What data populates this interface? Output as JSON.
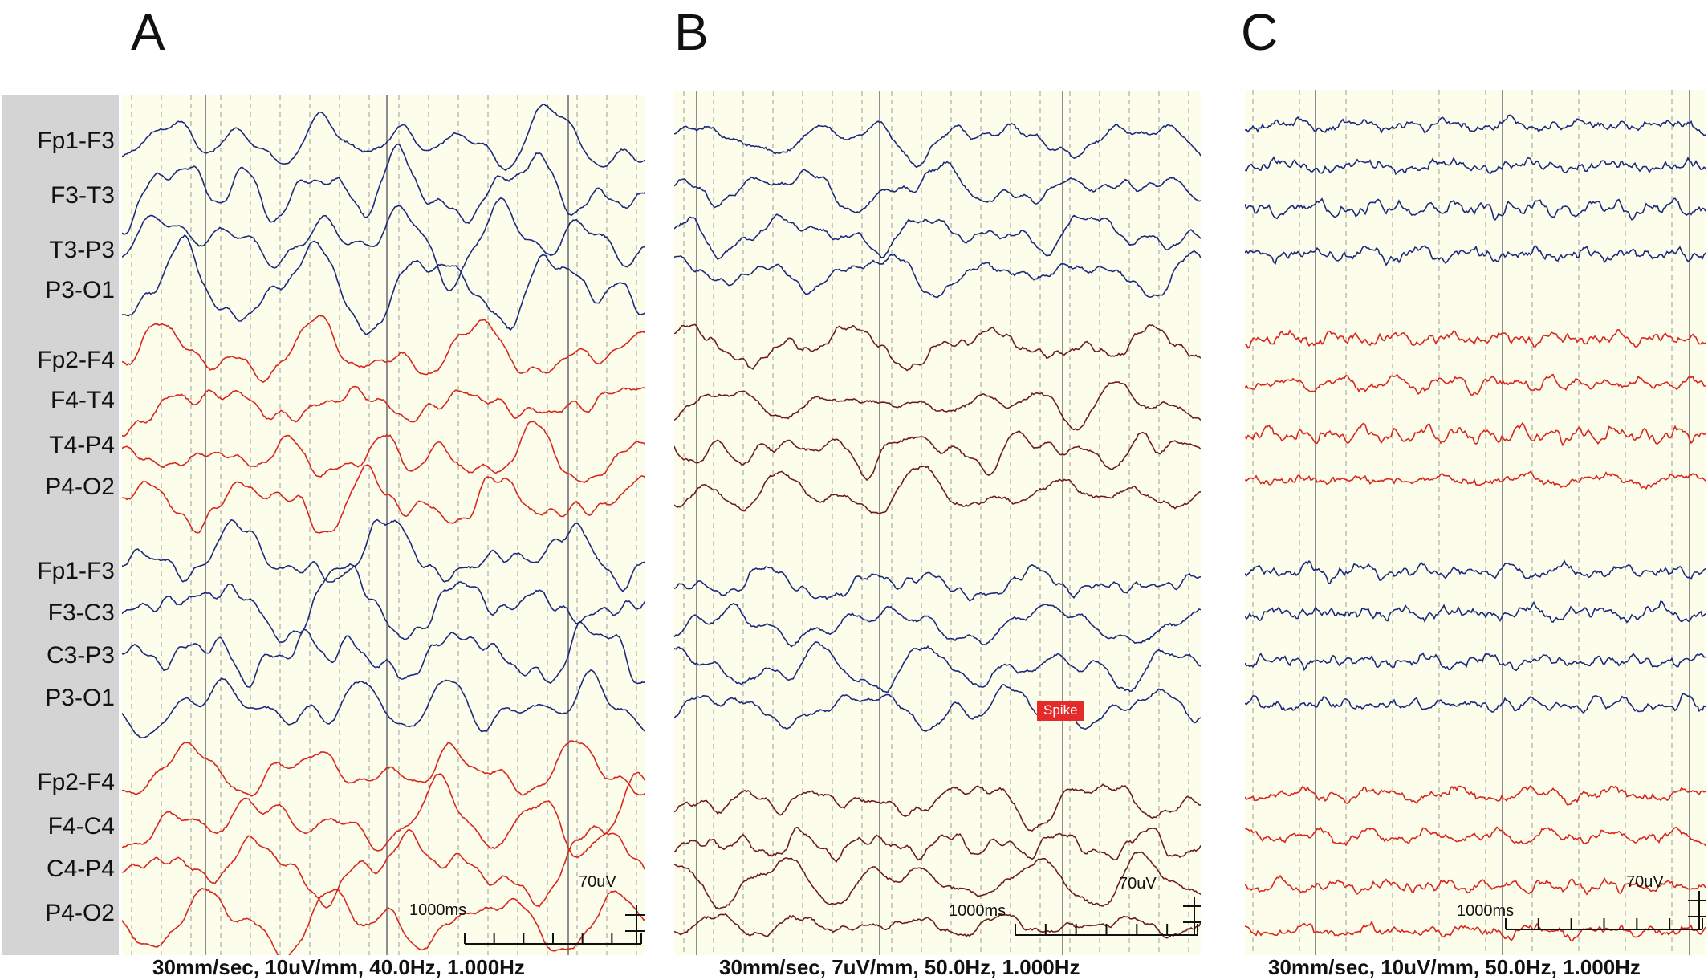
{
  "panels": [
    {
      "letter": "A",
      "settings": "30mm/sec, 10uV/mm, 40.0Hz, 1.000Hz",
      "scale": {
        "amplitude": "70uV",
        "time": "1000ms"
      },
      "colors": {
        "blue": "#1c2a7c",
        "red": "#d8261f"
      }
    },
    {
      "letter": "B",
      "settings": "30mm/sec, 7uV/mm, 50.0Hz, 1.000Hz",
      "scale": {
        "amplitude": "70uV",
        "time": "1000ms"
      },
      "annotation": "Spike",
      "colors": {
        "blue": "#1c2a7c",
        "red": "#6e1c1c"
      }
    },
    {
      "letter": "C",
      "settings": "30mm/sec, 10uV/mm, 50.0Hz, 1.000Hz",
      "scale": {
        "amplitude": "70uV",
        "time": "1000ms"
      },
      "colors": {
        "blue": "#1c2a7c",
        "red": "#d8261f"
      }
    }
  ],
  "channels": [
    "Fp1-F3",
    "F3-T3",
    "T3-P3",
    "P3-O1",
    "Fp2-F4",
    "F4-T4",
    "T4-P4",
    "P4-O2",
    "Fp1-F3",
    "F3-C3",
    "C3-P3",
    "P3-O1",
    "Fp2-F4",
    "F4-C4",
    "C4-P4",
    "P4-O2"
  ],
  "trace_colors": [
    "blue",
    "blue",
    "blue",
    "blue",
    "red",
    "red",
    "red",
    "red",
    "blue",
    "blue",
    "blue",
    "blue",
    "red",
    "red",
    "red",
    "red"
  ],
  "marker_color": "#f2e600"
}
